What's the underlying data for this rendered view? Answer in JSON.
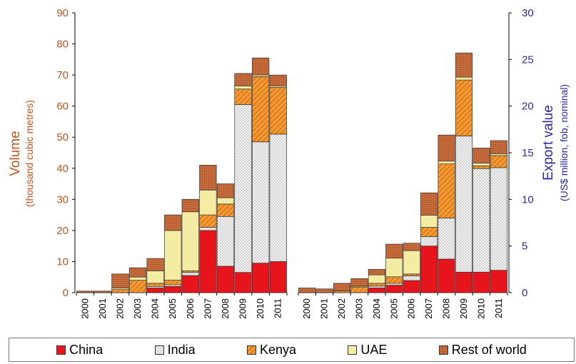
{
  "chart_data": {
    "type": "bar",
    "stacked": true,
    "left_axis": {
      "label_line1": "Volume",
      "label_line2": "(thousand cubic metres)",
      "ylim": [
        0,
        90
      ],
      "ticks": [
        "0",
        "10",
        "20",
        "30",
        "40",
        "50",
        "60",
        "70",
        "80",
        "90"
      ],
      "color": "#c0561f"
    },
    "right_axis": {
      "label_line1": "Export value",
      "label_line2": "(US$ million, fob, nominal)",
      "ylim": [
        0,
        30
      ],
      "ticks": [
        "0",
        "5",
        "10",
        "15",
        "20",
        "25",
        "30"
      ],
      "color": "#2b2ba0"
    },
    "categories": [
      "2000",
      "2001",
      "2002",
      "2003",
      "2004",
      "2005",
      "2006",
      "2007",
      "2008",
      "2009",
      "2010",
      "2011"
    ],
    "volume_series": [
      {
        "name": "China",
        "values": [
          0,
          0,
          0,
          0,
          1.5,
          2,
          5.5,
          20,
          8.5,
          6.5,
          9.5,
          10
        ]
      },
      {
        "name": "India",
        "values": [
          0,
          0,
          0,
          0,
          0.5,
          0.5,
          1,
          1,
          16,
          54,
          39,
          41
        ]
      },
      {
        "name": "Kenya",
        "values": [
          0,
          0,
          1,
          4,
          1,
          1.5,
          0.5,
          4,
          4,
          5,
          21,
          15
        ]
      },
      {
        "name": "UAE",
        "values": [
          0,
          0,
          0.5,
          1,
          4,
          16,
          19,
          8,
          2,
          1,
          0.5,
          0.5
        ]
      },
      {
        "name": "Rest of world",
        "values": [
          0.5,
          0.5,
          4.5,
          3,
          4,
          5,
          4,
          8,
          4.5,
          4,
          5.5,
          3.5
        ]
      }
    ],
    "value_series": [
      {
        "name": "China",
        "values": [
          0,
          0,
          0,
          0,
          0.5,
          0.8,
          1.3,
          5,
          3.6,
          2.2,
          2.2,
          2.4
        ]
      },
      {
        "name": "India",
        "values": [
          0,
          0,
          0,
          0,
          0.2,
          0.2,
          0.5,
          1,
          4.4,
          14.6,
          11.1,
          11
        ]
      },
      {
        "name": "Kenya",
        "values": [
          0,
          0,
          0.2,
          0.6,
          0.3,
          0.7,
          0.2,
          1,
          5.8,
          6,
          0.3,
          1.3
        ]
      },
      {
        "name": "UAE",
        "values": [
          0,
          0,
          0,
          0.1,
          0.9,
          2,
          2.5,
          1.3,
          0.3,
          0.3,
          0.3,
          0.2
        ]
      },
      {
        "name": "Rest of world",
        "values": [
          0.5,
          0.4,
          0.8,
          0.8,
          0.6,
          1.5,
          0.8,
          2.4,
          2.8,
          2.6,
          1.6,
          1.4
        ]
      }
    ],
    "colors": {
      "China": "#e8141c",
      "India": "#f4f4f4",
      "Kenya": "#f39a2e",
      "UAE": "#f3eca2",
      "Rest of world": "#c56a3a"
    },
    "legend": {
      "position": "bottom",
      "items": [
        {
          "label": "China",
          "key": "China"
        },
        {
          "label": "India",
          "key": "India"
        },
        {
          "label": "Kenya",
          "key": "Kenya"
        },
        {
          "label": "UAE",
          "key": "UAE"
        },
        {
          "label": "Rest of world",
          "key": "Rest of world"
        }
      ]
    }
  }
}
